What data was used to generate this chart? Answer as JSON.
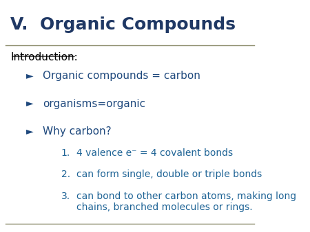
{
  "title": "V.  Organic Compounds",
  "title_color": "#1F3864",
  "title_fontsize": 18,
  "bg_color": "#FFFFFF",
  "separator_color": "#8B8B6B",
  "intro_label": "Introduction:",
  "intro_color": "#000000",
  "intro_fontsize": 11,
  "bullet_color": "#1F497D",
  "bullet_fontsize": 11,
  "numbered_color": "#1F6496",
  "numbered_fontsize": 10,
  "bullets": [
    "Organic compounds = carbon",
    "organisms=organic",
    "Why carbon?"
  ],
  "numbered": [
    "4 valence e⁻ = 4 covalent bonds",
    "can form single, double or triple bonds",
    "can bond to other carbon atoms, making long\nchains, branched molecules or rings."
  ]
}
